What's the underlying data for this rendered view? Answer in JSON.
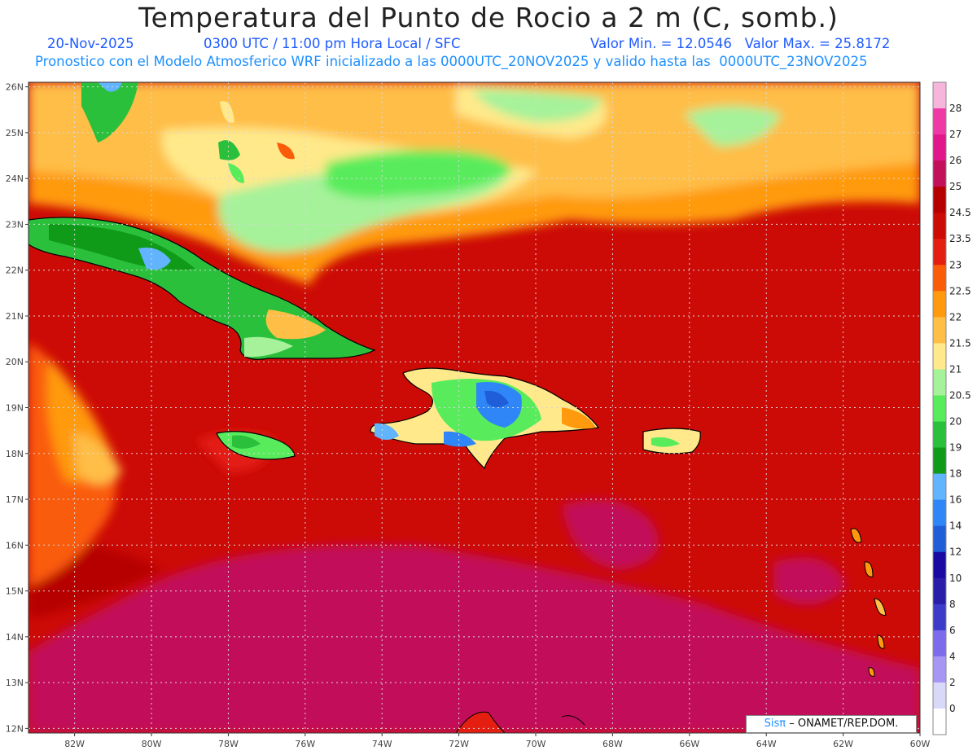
{
  "title": "Temperatura del Punto de Rocio a 2 m (C, somb.)",
  "subtitle": {
    "date": "20-Nov-2025",
    "time": "0300 UTC / 11:00 pm Hora Local / SFC",
    "minmax": "Valor Min. = 12.0546   Valor Max. = 25.8172",
    "info": "Pronostico con el Modelo Atmosferico WRF inicializado a las 0000UTC_20NOV2025 y valido hasta las  0000UTC_23NOV2025"
  },
  "map": {
    "lat_labels": [
      "26N",
      "25N",
      "24N",
      "23N",
      "22N",
      "21N",
      "20N",
      "19N",
      "18N",
      "17N",
      "16N",
      "15N",
      "14N",
      "13N",
      "12N"
    ],
    "lon_labels": [
      "82W",
      "80W",
      "78W",
      "76W",
      "74W",
      "72W",
      "70W",
      "68W",
      "66W",
      "64W",
      "62W",
      "60W"
    ],
    "lon_range": [
      -83.2,
      -60.0
    ],
    "lat_range": [
      11.9,
      26.1
    ]
  },
  "colorbar": {
    "levels": [
      "28",
      "27",
      "26",
      "25",
      "24.5",
      "23.5",
      "23",
      "22.5",
      "22",
      "21.5",
      "21",
      "20.5",
      "20",
      "19",
      "18",
      "16",
      "14",
      "12",
      "10",
      "8",
      "6",
      "4",
      "2",
      "0"
    ],
    "colors": [
      "#f6b6dc",
      "#ef3aa6",
      "#e0188c",
      "#c2105a",
      "#b60000",
      "#cc0a06",
      "#e41f12",
      "#fa5c0a",
      "#ff9a0e",
      "#ffbe46",
      "#ffe98a",
      "#a6f29a",
      "#58ec5c",
      "#2bc03c",
      "#0f9a18",
      "#62b4ff",
      "#2f86f6",
      "#1f5ed8",
      "#1a0aa2",
      "#2a1da8",
      "#3c3cc8",
      "#7c6cec",
      "#a896f4",
      "#d8d8f8",
      "#ffffff"
    ]
  },
  "credit": {
    "brand": "Sisπ",
    "text": "– ONAMET/REP.DOM."
  }
}
